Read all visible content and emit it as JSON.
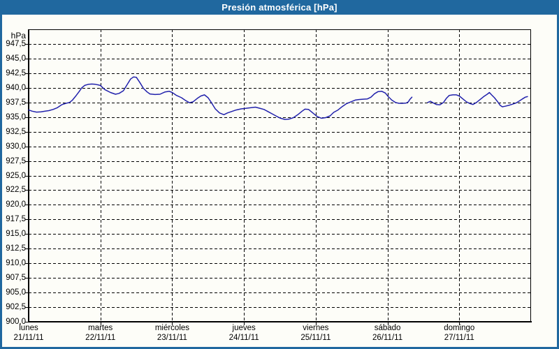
{
  "title_bar": {
    "title": "Presión atmosférica [hPa]"
  },
  "colors": {
    "frame": "#20689F",
    "titlebar_text": "#FFFFFF",
    "plot_background": "#FDFDF8",
    "grid": "#000000",
    "curve": "#2121AC",
    "label_text": "#000000"
  },
  "chart_data": {
    "type": "line",
    "title": "Presión atmosférica [hPa]",
    "unit_label": "hPa",
    "grid": "dashed",
    "legend": "none",
    "y_axis": {
      "min": 900,
      "max": 950,
      "tick_step": 2.5,
      "tick_labels": [
        "947,5",
        "945,0",
        "942,5",
        "940,0",
        "937,5",
        "935,0",
        "932,5",
        "930,0",
        "927,5",
        "925,0",
        "922,5",
        "920,0",
        "917,5",
        "915,0",
        "912,5",
        "910,0",
        "907,5",
        "905,0",
        "902,5",
        "900,0"
      ]
    },
    "x_axis": {
      "days": [
        {
          "name": "lunes",
          "date": "21/11/11"
        },
        {
          "name": "martes",
          "date": "22/11/11"
        },
        {
          "name": "miércoles",
          "date": "23/11/11"
        },
        {
          "name": "jueves",
          "date": "24/11/11"
        },
        {
          "name": "viernes",
          "date": "25/11/11"
        },
        {
          "name": "sábado",
          "date": "26/11/11"
        },
        {
          "name": "domingo",
          "date": "27/11/11"
        }
      ]
    },
    "series": [
      {
        "name": "Presión atmosférica",
        "unit": "hPa",
        "x_unit": "days since 21/11/11",
        "segments": [
          [
            [
              0.0,
              936.2
            ],
            [
              0.05,
              936.0
            ],
            [
              0.11,
              935.85
            ],
            [
              0.17,
              935.9
            ],
            [
              0.23,
              936.0
            ],
            [
              0.28,
              936.1
            ],
            [
              0.34,
              936.3
            ],
            [
              0.4,
              936.6
            ],
            [
              0.46,
              937.1
            ],
            [
              0.52,
              937.35
            ],
            [
              0.57,
              937.5
            ],
            [
              0.61,
              937.9
            ],
            [
              0.65,
              938.5
            ],
            [
              0.7,
              939.3
            ],
            [
              0.74,
              940.0
            ],
            [
              0.78,
              940.4
            ],
            [
              0.83,
              940.6
            ],
            [
              0.88,
              940.65
            ],
            [
              0.93,
              940.6
            ],
            [
              0.97,
              940.5
            ],
            [
              1.0,
              940.4
            ],
            [
              1.06,
              939.7
            ],
            [
              1.14,
              939.2
            ],
            [
              1.21,
              938.9
            ],
            [
              1.26,
              939.05
            ],
            [
              1.32,
              939.5
            ],
            [
              1.37,
              940.5
            ],
            [
              1.42,
              941.5
            ],
            [
              1.46,
              941.85
            ],
            [
              1.5,
              941.8
            ],
            [
              1.55,
              940.9
            ],
            [
              1.6,
              939.9
            ],
            [
              1.65,
              939.3
            ],
            [
              1.69,
              938.95
            ],
            [
              1.76,
              938.85
            ],
            [
              1.83,
              938.9
            ],
            [
              1.9,
              939.3
            ],
            [
              1.96,
              939.4
            ],
            [
              2.0,
              939.2
            ],
            [
              2.06,
              938.7
            ],
            [
              2.13,
              938.3
            ],
            [
              2.19,
              937.8
            ],
            [
              2.24,
              937.45
            ],
            [
              2.29,
              937.6
            ],
            [
              2.35,
              938.2
            ],
            [
              2.4,
              938.6
            ],
            [
              2.45,
              938.8
            ],
            [
              2.5,
              938.3
            ],
            [
              2.55,
              937.4
            ],
            [
              2.6,
              936.4
            ],
            [
              2.66,
              935.7
            ],
            [
              2.72,
              935.4
            ],
            [
              2.77,
              935.7
            ],
            [
              2.83,
              935.95
            ],
            [
              2.89,
              936.2
            ],
            [
              2.96,
              936.4
            ],
            [
              3.03,
              936.5
            ],
            [
              3.1,
              936.6
            ],
            [
              3.16,
              936.7
            ],
            [
              3.22,
              936.5
            ],
            [
              3.28,
              936.3
            ],
            [
              3.34,
              935.9
            ],
            [
              3.4,
              935.5
            ],
            [
              3.46,
              935.1
            ],
            [
              3.51,
              934.8
            ],
            [
              3.57,
              934.6
            ],
            [
              3.63,
              934.65
            ],
            [
              3.69,
              934.9
            ],
            [
              3.75,
              935.4
            ],
            [
              3.81,
              936.0
            ],
            [
              3.85,
              936.35
            ],
            [
              3.9,
              936.3
            ],
            [
              3.96,
              935.7
            ],
            [
              4.02,
              935.1
            ],
            [
              4.08,
              934.8
            ],
            [
              4.14,
              934.9
            ],
            [
              4.2,
              935.2
            ],
            [
              4.25,
              935.8
            ],
            [
              4.31,
              936.2
            ],
            [
              4.37,
              936.8
            ],
            [
              4.43,
              937.3
            ],
            [
              4.49,
              937.6
            ],
            [
              4.55,
              937.9
            ],
            [
              4.6,
              938.0
            ],
            [
              4.66,
              938.05
            ],
            [
              4.72,
              938.1
            ],
            [
              4.77,
              938.4
            ],
            [
              4.82,
              939.0
            ],
            [
              4.87,
              939.35
            ],
            [
              4.92,
              939.4
            ],
            [
              4.97,
              939.1
            ],
            [
              5.01,
              938.5
            ],
            [
              5.06,
              937.9
            ],
            [
              5.11,
              937.5
            ],
            [
              5.16,
              937.35
            ],
            [
              5.21,
              937.35
            ],
            [
              5.26,
              937.4
            ],
            [
              5.29,
              937.6
            ],
            [
              5.31,
              938.0
            ],
            [
              5.34,
              938.4
            ]
          ],
          [
            [
              5.56,
              937.5
            ],
            [
              5.6,
              937.7
            ],
            [
              5.64,
              937.4
            ],
            [
              5.68,
              937.15
            ],
            [
              5.73,
              937.1
            ],
            [
              5.78,
              937.5
            ],
            [
              5.82,
              938.2
            ],
            [
              5.86,
              938.7
            ],
            [
              5.91,
              938.8
            ],
            [
              5.96,
              938.8
            ],
            [
              6.0,
              938.6
            ],
            [
              6.05,
              938.1
            ],
            [
              6.1,
              937.6
            ],
            [
              6.15,
              937.3
            ],
            [
              6.19,
              937.15
            ],
            [
              6.24,
              937.5
            ],
            [
              6.29,
              938.0
            ],
            [
              6.34,
              938.5
            ],
            [
              6.39,
              938.9
            ],
            [
              6.42,
              939.2
            ],
            [
              6.45,
              938.8
            ],
            [
              6.49,
              938.3
            ],
            [
              6.53,
              937.7
            ],
            [
              6.57,
              937.0
            ],
            [
              6.6,
              936.75
            ],
            [
              6.64,
              936.85
            ],
            [
              6.69,
              937.0
            ],
            [
              6.74,
              937.2
            ],
            [
              6.79,
              937.4
            ],
            [
              6.83,
              937.7
            ],
            [
              6.88,
              938.1
            ],
            [
              6.92,
              938.4
            ],
            [
              6.95,
              938.5
            ]
          ]
        ]
      }
    ]
  }
}
